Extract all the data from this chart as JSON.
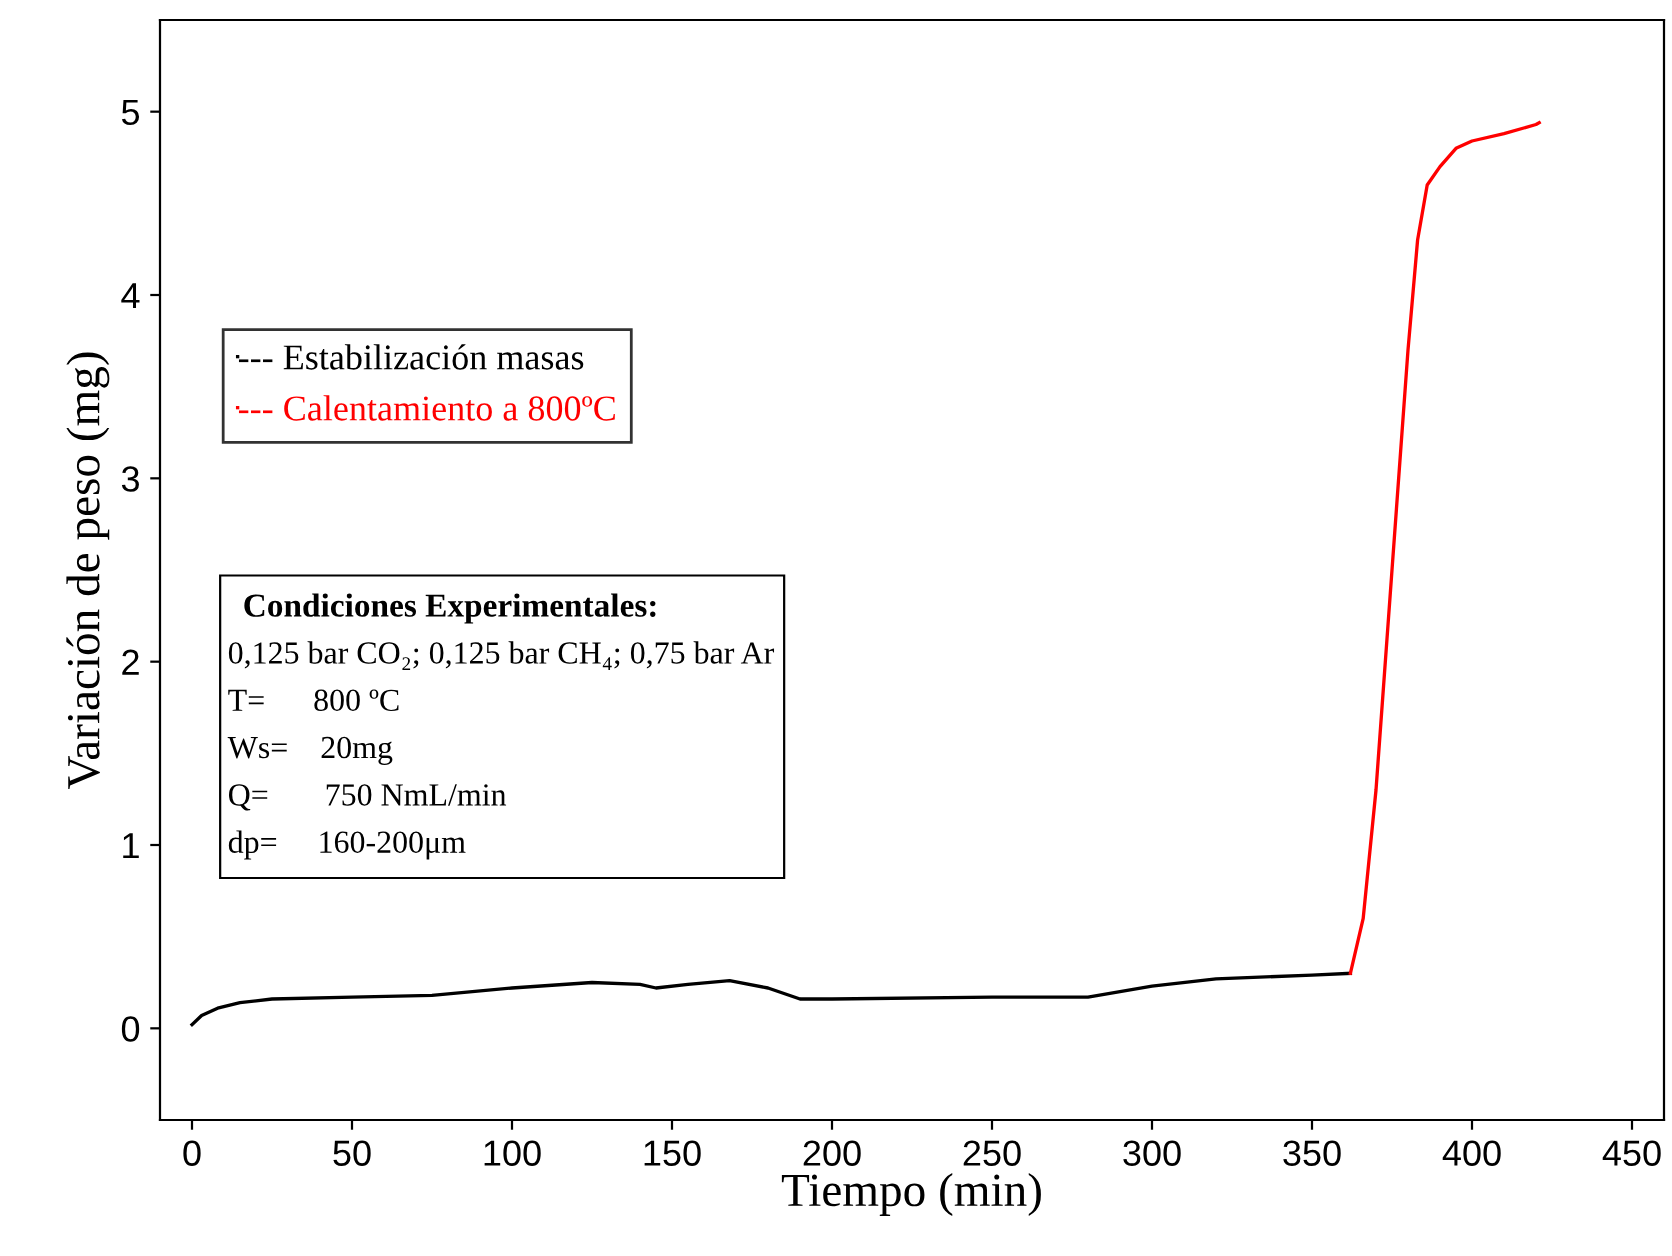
{
  "chart_data": {
    "type": "line",
    "xlabel": "Tiempo (min)",
    "ylabel": "Variación de peso (mg)",
    "xlim": [
      -10,
      460
    ],
    "ylim": [
      -0.5,
      5.5
    ],
    "xticks": [
      0,
      50,
      100,
      150,
      200,
      250,
      300,
      350,
      400,
      450
    ],
    "yticks": [
      0,
      1,
      2,
      3,
      4,
      5
    ],
    "grid": false,
    "legend": "top left",
    "marker": "none",
    "line_style": "solid",
    "series": [
      {
        "name": "--- Estabilización masas",
        "color": "#000000",
        "x": [
          0,
          3,
          8,
          15,
          25,
          50,
          75,
          100,
          125,
          140,
          145,
          155,
          168,
          180,
          190,
          200,
          250,
          280,
          300,
          320,
          350,
          362
        ],
        "values": [
          0.02,
          0.07,
          0.11,
          0.14,
          0.16,
          0.17,
          0.18,
          0.22,
          0.25,
          0.24,
          0.22,
          0.24,
          0.26,
          0.22,
          0.16,
          0.16,
          0.17,
          0.17,
          0.23,
          0.27,
          0.29,
          0.3
        ]
      },
      {
        "name": "--- Calentamiento a 800ºC",
        "color": "#ff0000",
        "x": [
          362,
          366,
          370,
          375,
          380,
          383,
          386,
          390,
          395,
          400,
          410,
          420,
          421
        ],
        "values": [
          0.3,
          0.6,
          1.3,
          2.5,
          3.7,
          4.3,
          4.6,
          4.7,
          4.8,
          4.84,
          4.88,
          4.93,
          4.94
        ]
      }
    ],
    "annotations": [
      "Condiciones Experimentales:",
      "0,125 bar CO₂; 0,125 bar CH₄; 0,75 bar Ar",
      "T=      800 ºC",
      "Ws=    20mg",
      "Q=       750 NmL/min",
      "dp=     160-200μm"
    ]
  }
}
